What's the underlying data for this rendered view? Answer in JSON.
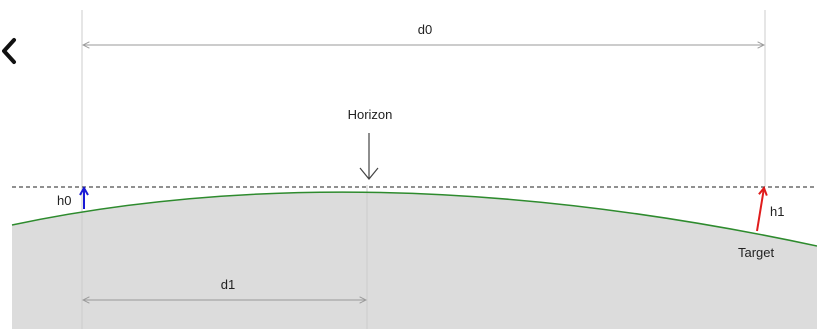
{
  "diagram": {
    "labels": {
      "d0": "d0",
      "d1": "d1",
      "h0": "h0",
      "h1": "h1",
      "horizon": "Horizon",
      "target": "Target"
    },
    "colors": {
      "ground_fill": "#dcdcdc",
      "surface_line": "#2e8b2e",
      "h0_arrow": "#1a1ad6",
      "h1_arrow": "#e01c1c",
      "guide_line": "#cccccc",
      "dimension_line": "#999999",
      "tangent_line": "#222222"
    }
  },
  "nav": {
    "back_icon": "chevron-left-icon"
  }
}
